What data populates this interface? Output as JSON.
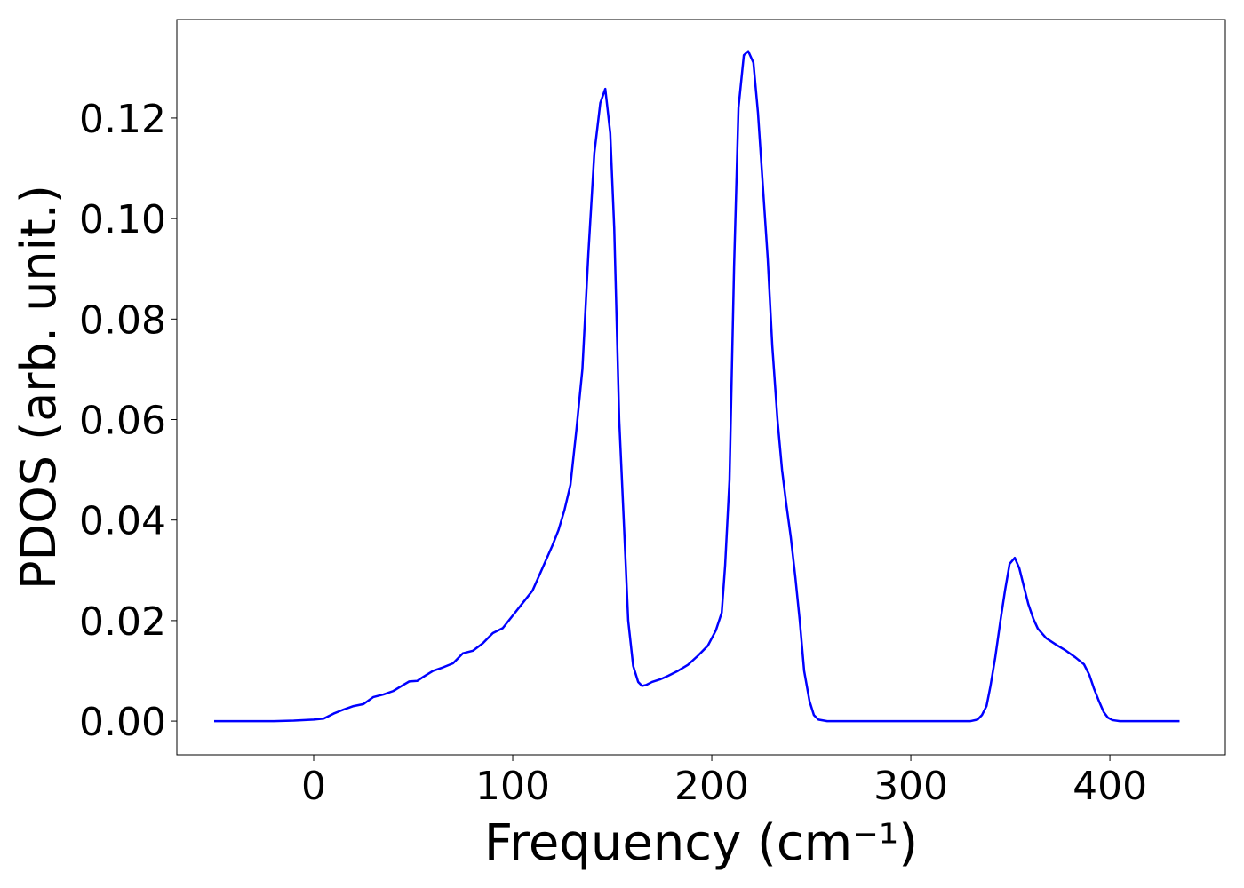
{
  "chart_data": {
    "type": "line",
    "xlabel": "Frequency (cm⁻¹)",
    "ylabel": "PDOS (arb. unit.)",
    "color": "#0000ff",
    "x": [
      -50,
      -20,
      -10,
      0,
      5,
      10,
      15,
      20,
      25,
      30,
      35,
      40,
      45,
      48,
      52,
      55,
      60,
      65,
      70,
      75,
      80,
      85,
      90,
      95,
      100,
      105,
      110,
      115,
      120,
      123,
      126,
      129,
      132,
      135,
      138,
      141,
      144,
      146.5,
      149,
      151,
      153.5,
      156,
      158,
      160.5,
      163,
      165,
      167,
      170,
      174,
      178,
      183,
      188,
      193,
      198,
      202,
      205,
      206.7,
      208.9,
      211.2,
      213.4,
      216.1,
      218.3,
      220.9,
      223.2,
      225.4,
      228.1,
      230.4,
      233,
      235.3,
      237.5,
      239.7,
      242,
      244.2,
      246.4,
      249.1,
      251.3,
      253.6,
      258,
      300,
      330,
      333.5,
      335.7,
      338,
      340,
      342.4,
      345,
      347.3,
      349.6,
      352.2,
      354.5,
      356.7,
      359,
      361.6,
      363.8,
      368,
      373,
      378,
      382.6,
      387,
      389.7,
      392,
      394.6,
      396.9,
      399,
      401.3,
      405,
      435
    ],
    "values": [
      0,
      0,
      0.0001,
      0.0003,
      0.0005,
      0.0015,
      0.0023,
      0.003,
      0.0034,
      0.0048,
      0.0053,
      0.006,
      0.0072,
      0.0079,
      0.008,
      0.0088,
      0.01,
      0.0107,
      0.0115,
      0.0135,
      0.014,
      0.0155,
      0.0175,
      0.0185,
      0.021,
      0.0235,
      0.026,
      0.0305,
      0.035,
      0.038,
      0.042,
      0.047,
      0.058,
      0.07,
      0.093,
      0.113,
      0.123,
      0.1258,
      0.117,
      0.098,
      0.06,
      0.038,
      0.02,
      0.011,
      0.0078,
      0.007,
      0.0072,
      0.0078,
      0.0083,
      0.009,
      0.01,
      0.0112,
      0.013,
      0.015,
      0.018,
      0.0216,
      0.031,
      0.048,
      0.0905,
      0.122,
      0.1325,
      0.1333,
      0.131,
      0.121,
      0.108,
      0.092,
      0.0746,
      0.06,
      0.05,
      0.043,
      0.0366,
      0.0286,
      0.02,
      0.01,
      0.004,
      0.0012,
      0.0003,
      0,
      0,
      0,
      0.0003,
      0.0012,
      0.003,
      0.007,
      0.0127,
      0.02,
      0.026,
      0.0313,
      0.0325,
      0.0304,
      0.0269,
      0.0233,
      0.0203,
      0.0184,
      0.0165,
      0.0152,
      0.014,
      0.0127,
      0.0113,
      0.0092,
      0.0065,
      0.0039,
      0.0018,
      0.0007,
      0.0002,
      0,
      0
    ],
    "xlim": [
      -68.75,
      458
    ],
    "ylim": [
      -0.0067,
      0.1396
    ],
    "xticks": [
      0,
      100,
      200,
      300,
      400
    ],
    "yticks": [
      {
        "value": 0,
        "label": "0.00"
      },
      0.02,
      0.04,
      0.06,
      0.08,
      {
        "value": 0.1,
        "label": "0.10"
      },
      0.12
    ]
  }
}
